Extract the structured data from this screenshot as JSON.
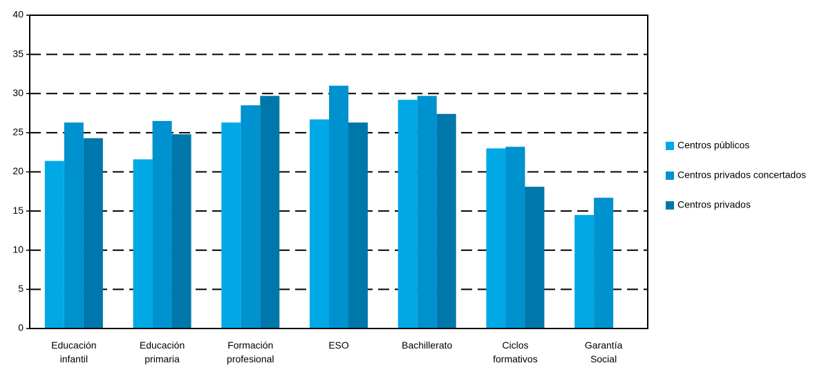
{
  "chart_data": {
    "type": "bar",
    "categories": [
      "Educación\ninfantil",
      "Educación\nprimaria",
      "Formación\nprofesional",
      "ESO",
      "Bachillerato",
      "Ciclos\nformativos",
      "Garantía\nSocial"
    ],
    "series": [
      {
        "name": "Centros públicos",
        "color": "#00a9e6",
        "values": [
          21.4,
          21.6,
          26.3,
          26.7,
          29.2,
          23.0,
          14.5
        ]
      },
      {
        "name": "Centros privados concertados",
        "color": "#0091cf",
        "values": [
          26.3,
          26.5,
          28.5,
          31.0,
          29.7,
          23.2,
          16.7
        ]
      },
      {
        "name": "Centros privados",
        "color": "#0077ab",
        "values": [
          24.3,
          24.8,
          29.7,
          26.3,
          27.4,
          18.1,
          null
        ]
      }
    ],
    "ylim": [
      0,
      40
    ],
    "yticks": [
      0,
      5,
      10,
      15,
      20,
      25,
      30,
      35,
      40
    ],
    "grid": true,
    "legend": "right"
  }
}
